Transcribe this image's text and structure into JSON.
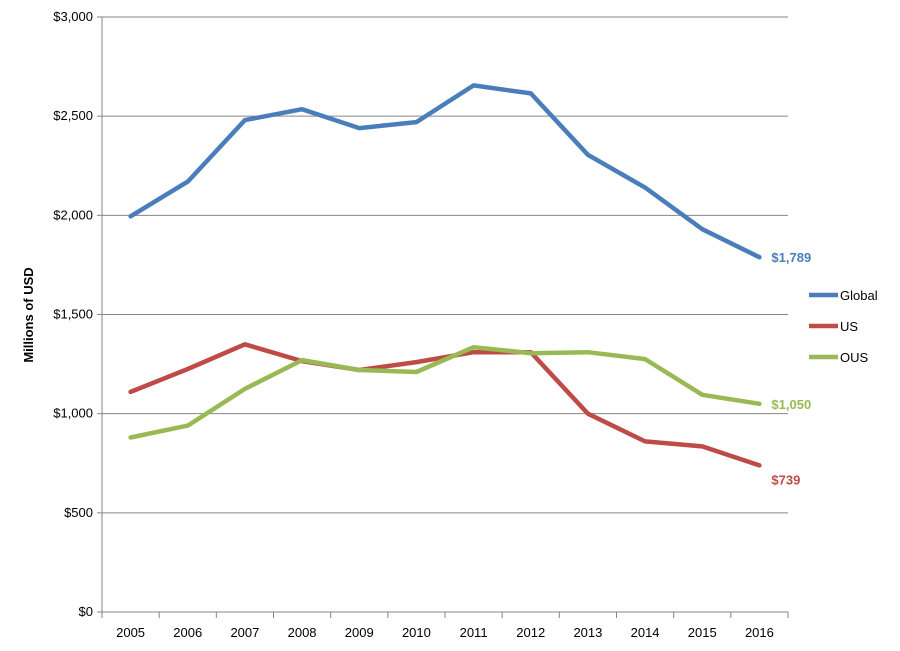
{
  "chart_data": {
    "type": "line",
    "ylabel": "Millions of USD",
    "xlabel": "",
    "title": "",
    "ylim": [
      0,
      3000
    ],
    "y_ticks": [
      0,
      500,
      1000,
      1500,
      2000,
      2500,
      3000
    ],
    "y_tick_labels": [
      "$0",
      "$500",
      "$1,000",
      "$1,500",
      "$2,000",
      "$2,500",
      "$3,000"
    ],
    "categories": [
      "2005",
      "2006",
      "2007",
      "2008",
      "2009",
      "2010",
      "2011",
      "2012",
      "2013",
      "2014",
      "2015",
      "2016"
    ],
    "grid": "horizontal",
    "legend_position": "right",
    "series": [
      {
        "name": "Global",
        "color": "#4A7EBB",
        "values": [
          1995,
          2170,
          2480,
          2535,
          2440,
          2470,
          2655,
          2615,
          2305,
          2140,
          1930,
          1789
        ],
        "end_label": "$1,789"
      },
      {
        "name": "US",
        "color": "#BE4B48",
        "values": [
          1110,
          1225,
          1350,
          1265,
          1220,
          1260,
          1310,
          1310,
          1000,
          860,
          835,
          739
        ],
        "end_label": "$739"
      },
      {
        "name": "OUS",
        "color": "#98B954",
        "values": [
          880,
          940,
          1125,
          1270,
          1220,
          1210,
          1335,
          1305,
          1310,
          1275,
          1095,
          1050
        ],
        "end_label": "$1,050"
      }
    ]
  }
}
